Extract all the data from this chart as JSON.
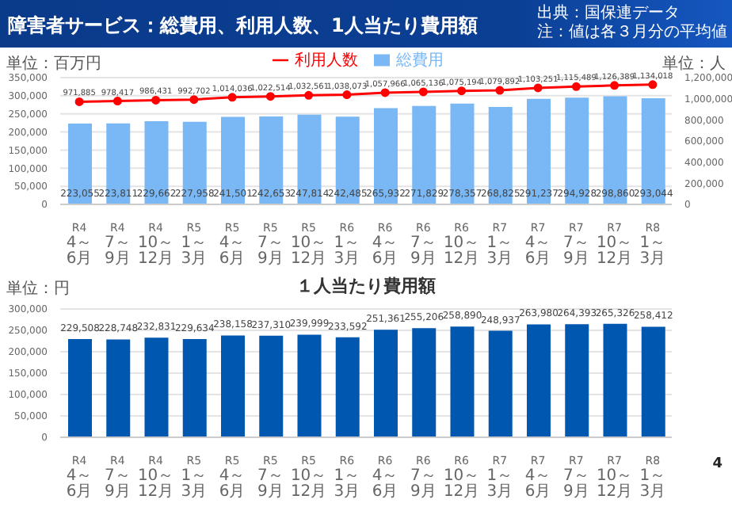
{
  "chart_data": [
    {
      "type": "bar",
      "title": "障害者サービス：総費用、利用人数、1人当たり費用額",
      "annotations": [
        "出典：国保連データ",
        "注：値は各３月分の平均値"
      ],
      "categories": [
        "R4 4～6月",
        "R4 7～9月",
        "R4 10～12月",
        "R5 1～3月",
        "R5 4～6月",
        "R5 7～9月",
        "R5 10～12月",
        "R6 1～3月",
        "R6 4～6月",
        "R6 7～9月",
        "R6 10～12月",
        "R7 1～3月",
        "R7 4～6月",
        "R7 7～9月",
        "R7 10～12月",
        "R8 1～3月"
      ],
      "series": [
        {
          "name": "総費用",
          "color": "#7ab8f5",
          "values": [
            223055,
            223811,
            229662,
            227958,
            241501,
            242653,
            247814,
            242485,
            265932,
            271829,
            278357,
            268825,
            291237,
            294928,
            298860,
            293044
          ],
          "value_labels": [
            "223,055",
            "223,811",
            "229,662",
            "227,958",
            "241,501",
            "242,653",
            "247,814",
            "242,485",
            "265,932",
            "271,829",
            "278,357",
            "268,825",
            "291,237",
            "294,928",
            "298,860",
            "293,044"
          ]
        },
        {
          "name": "利用人数",
          "type": "line",
          "axis": "y2",
          "color": "#ff0000",
          "values": [
            971885,
            978417,
            986431,
            992702,
            1014036,
            1022514,
            1032561,
            1038073,
            1057966,
            1065136,
            1075194,
            1079892,
            1103251,
            1115489,
            1126389,
            1134018
          ],
          "value_labels": [
            "971,885",
            "978,417",
            "986,431",
            "992,702",
            "1,014,036",
            "1,022,514",
            "1,032,561",
            "1,038,073",
            "1,057,966",
            "1,065,136",
            "1,075,194",
            "1,079,892",
            "1,103,251",
            "1,115,489",
            "1,126,389",
            "1,134,018"
          ]
        }
      ],
      "ylabel": "単位：百万円",
      "y2label": "単位：人",
      "ylim": [
        0,
        350000
      ],
      "yticks": [
        0,
        {
          "value": 50000,
          "label": "50,000"
        },
        {
          "value": 100000,
          "label": "100,000"
        },
        {
          "value": 150000,
          "label": "150,000"
        },
        {
          "value": 200000,
          "label": "200,000"
        },
        {
          "value": 250000,
          "label": "250,000"
        },
        {
          "value": 300000,
          "label": "300,000"
        },
        {
          "value": 350000,
          "label": "350,000"
        }
      ],
      "y2lim": [
        0,
        1200000
      ],
      "y2ticks": [
        0,
        {
          "value": 200000,
          "label": "200,000"
        },
        {
          "value": 400000,
          "label": "400,000"
        },
        {
          "value": 600000,
          "label": "600,000"
        },
        {
          "value": 800000,
          "label": "800,000"
        },
        {
          "value": 1000000,
          "label": "1,000,000"
        },
        {
          "value": 1200000,
          "label": "1,200,000"
        }
      ],
      "grid": "y",
      "legend": "top",
      "marker": "circle"
    },
    {
      "type": "bar",
      "title": "１人当たり費用額",
      "ylabel": "単位：円",
      "annotations": [
        "4"
      ],
      "categories": [
        "R4 4～6月",
        "R4 7～9月",
        "R4 10～12月",
        "R5 1～3月",
        "R5 4～6月",
        "R5 7～9月",
        "R5 10～12月",
        "R6 1～3月",
        "R6 4～6月",
        "R6 7～9月",
        "R6 10～12月",
        "R7 1～3月",
        "R7 4～6月",
        "R7 7～9月",
        "R7 10～12月",
        "R8 1～3月"
      ],
      "series": [
        {
          "color": "#0057b0",
          "values": [
            229508,
            228748,
            232831,
            229634,
            238158,
            237310,
            239999,
            233592,
            251361,
            255206,
            258890,
            248937,
            263980,
            264393,
            265326,
            258412
          ],
          "value_labels": [
            "229,508",
            "228,748",
            "232,831",
            "229,634",
            "238,158",
            "237,310",
            "239,999",
            "233,592",
            "251,361",
            "255,206",
            "258,890",
            "248,937",
            "263,980",
            "264,393",
            "265,326",
            "258,412"
          ]
        }
      ],
      "ylim": [
        0,
        300000
      ],
      "yticks": [
        0,
        {
          "value": 50000,
          "label": "50,000"
        },
        {
          "value": 100000,
          "label": "100,000"
        },
        {
          "value": 150000,
          "label": "150,000"
        },
        {
          "value": 200000,
          "label": "200,000"
        },
        {
          "value": 250000,
          "label": "250,000"
        },
        {
          "value": 300000,
          "label": "300,000"
        }
      ],
      "grid": "y"
    }
  ]
}
